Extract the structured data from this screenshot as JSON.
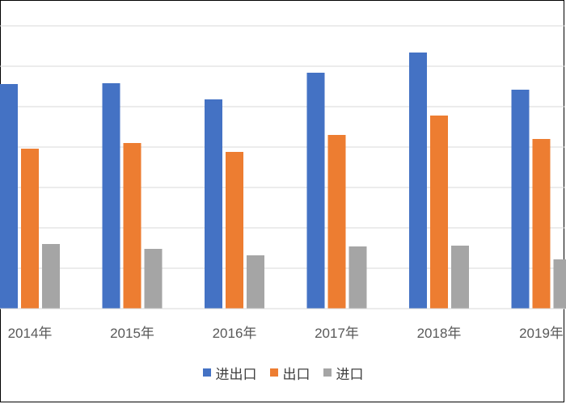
{
  "chart_data": {
    "type": "bar",
    "categories": [
      "2014年",
      "2015年",
      "2016年",
      "2017年",
      "2018年",
      "2019年"
    ],
    "series": [
      {
        "name": "进出口",
        "color": "#4472C4",
        "values": [
          278,
          279,
          259,
          292,
          317,
          271
        ]
      },
      {
        "name": "出口",
        "color": "#ED7D31",
        "values": [
          198,
          205,
          194,
          215,
          239,
          210
        ]
      },
      {
        "name": "进口",
        "color": "#A5A5A5",
        "values": [
          80,
          74,
          66,
          77,
          78,
          61
        ]
      }
    ],
    "ylim": [
      0,
      350
    ],
    "grid": true,
    "legend_position": "bottom"
  }
}
